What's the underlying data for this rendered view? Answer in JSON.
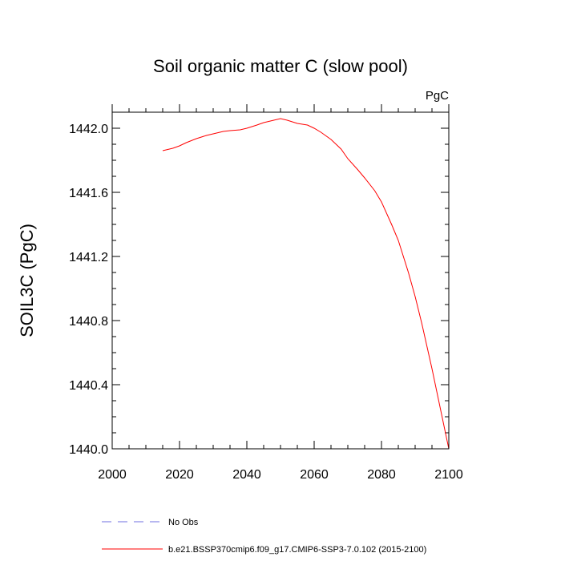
{
  "chart_data": {
    "type": "line",
    "title": "Soil organic matter C (slow pool)",
    "units": "PgC",
    "xlabel": "",
    "ylabel": "SOIL3C  (PgC)",
    "xlim": [
      2000,
      2100
    ],
    "ylim": [
      1440.0,
      1442.1
    ],
    "xticks": [
      2000,
      2020,
      2040,
      2060,
      2080,
      2100
    ],
    "yticks": [
      1440.0,
      1440.4,
      1440.8,
      1441.2,
      1441.6,
      1442.0
    ],
    "ytick_labels": [
      "1440.0",
      "1440.4",
      "1440.8",
      "1441.2",
      "1441.6",
      "1442.0"
    ],
    "xtick_labels": [
      "2000",
      "2020",
      "2040",
      "2060",
      "2080",
      "2100"
    ],
    "series": [
      {
        "name": "No Obs",
        "style": "dashed",
        "color": "#6f6fe0",
        "x": [],
        "y": []
      },
      {
        "name": "b.e21.BSSP370cmip6.f09_g17.CMIP6-SSP3-7.0.102 (2015-2100)",
        "style": "solid",
        "color": "#ff0000",
        "x": [
          2015,
          2018,
          2020,
          2022,
          2025,
          2028,
          2030,
          2033,
          2035,
          2038,
          2040,
          2043,
          2045,
          2048,
          2050,
          2052,
          2055,
          2058,
          2060,
          2062,
          2065,
          2068,
          2070,
          2073,
          2075,
          2078,
          2080,
          2083,
          2085,
          2088,
          2090,
          2092,
          2095,
          2098,
          2100
        ],
        "y": [
          1441.86,
          1441.875,
          1441.89,
          1441.91,
          1441.935,
          1441.955,
          1441.965,
          1441.98,
          1441.985,
          1441.99,
          1442.0,
          1442.02,
          1442.035,
          1442.05,
          1442.06,
          1442.05,
          1442.03,
          1442.02,
          1442.0,
          1441.975,
          1441.93,
          1441.87,
          1441.81,
          1441.74,
          1441.69,
          1441.61,
          1441.54,
          1441.4,
          1441.3,
          1441.1,
          1440.95,
          1440.78,
          1440.5,
          1440.2,
          1440.0
        ]
      }
    ],
    "legend": [
      {
        "label": "No Obs",
        "style": "dashed",
        "color": "#6f6fe0"
      },
      {
        "label": "b.e21.BSSP370cmip6.f09_g17.CMIP6-SSP3-7.0.102 (2015-2100)",
        "style": "solid",
        "color": "#ff0000"
      }
    ],
    "legend_position": "bottom"
  }
}
